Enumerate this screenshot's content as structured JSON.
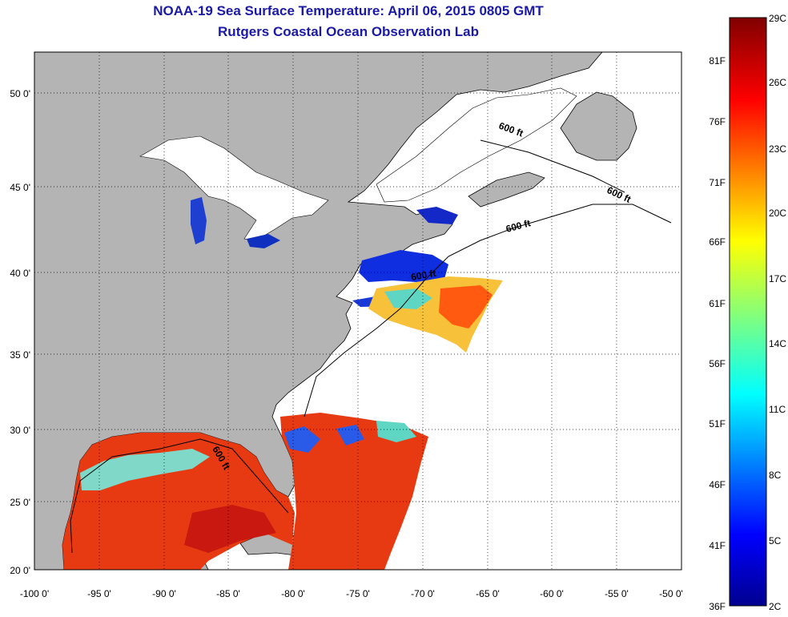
{
  "header": {
    "title_line1": "NOAA-19 Sea Surface Temperature:  April 06, 2015 0805 GMT",
    "title_line2": "Rutgers Coastal Ocean Observation Lab"
  },
  "map": {
    "lon_range": [
      -100,
      -50
    ],
    "lat_range": [
      20,
      52.5
    ],
    "lon_tick_labels": [
      "-100 0'",
      "-95 0'",
      "-90 0'",
      "-85 0'",
      "-80 0'",
      "-75 0'",
      "-70 0'",
      "-65 0'",
      "-60 0'",
      "-55 0'",
      "-50 0'"
    ],
    "lat_tick_labels": [
      "20 0'",
      "25 0'",
      "30 0'",
      "35 0'",
      "40 0'",
      "45 0'",
      "50 0'"
    ],
    "contour_labels": [
      "600 ft",
      "600 ft",
      "600 ft",
      "600 ft",
      "600 ft"
    ],
    "colors": {
      "land": "#b4b4b4",
      "no_data": "#ffffff",
      "grid": "#000000"
    }
  },
  "colorbar": {
    "celsius_labels": [
      "29C",
      "26C",
      "23C",
      "20C",
      "17C",
      "14C",
      "11C",
      "8C",
      "5C",
      "2C"
    ],
    "fahrenheit_labels": [
      "81F",
      "76F",
      "71F",
      "66F",
      "61F",
      "56F",
      "51F",
      "46F",
      "41F",
      "36F"
    ],
    "celsius_range": [
      2,
      29
    ],
    "palette": "jet"
  }
}
